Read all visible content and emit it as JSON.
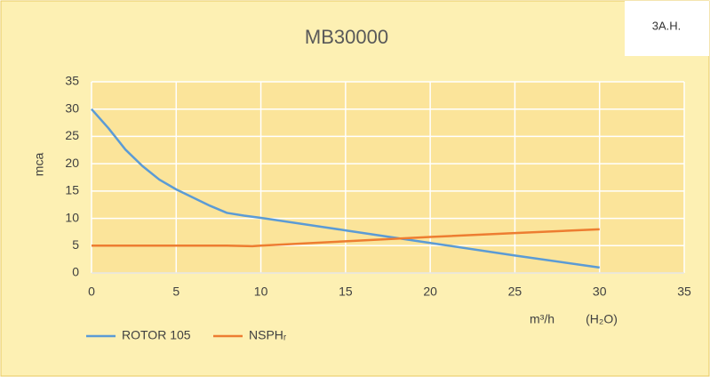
{
  "chart_data": {
    "type": "line",
    "title": "MB30000",
    "y_label": "mca",
    "x_label": "m³/h",
    "x_unit": "(H₂O)",
    "logo": "3A.H.",
    "xlim": [
      0,
      35
    ],
    "xticks": [
      0,
      5,
      10,
      15,
      20,
      25,
      30,
      35
    ],
    "ylim": [
      0,
      35
    ],
    "yticks": [
      0,
      5,
      10,
      15,
      20,
      25,
      30,
      35
    ],
    "grid": true,
    "series": [
      {
        "name": "ROTOR 105",
        "color": "#5b9bd5",
        "x": [
          0,
          1,
          2,
          3,
          4,
          5,
          6,
          7,
          8,
          9,
          10,
          15,
          20,
          25,
          30
        ],
        "values": [
          30,
          26.5,
          22.6,
          19.6,
          17.1,
          15.3,
          13.8,
          12.3,
          11,
          10.5,
          10.1,
          7.8,
          5.5,
          3.2,
          1
        ]
      },
      {
        "name": "NSPHᵣ",
        "color": "#ed7d31",
        "x": [
          0,
          5,
          8,
          9.5,
          10,
          15,
          20,
          25,
          30
        ],
        "values": [
          5,
          5,
          5,
          4.9,
          5,
          5.8,
          6.6,
          7.3,
          8
        ]
      }
    ]
  }
}
